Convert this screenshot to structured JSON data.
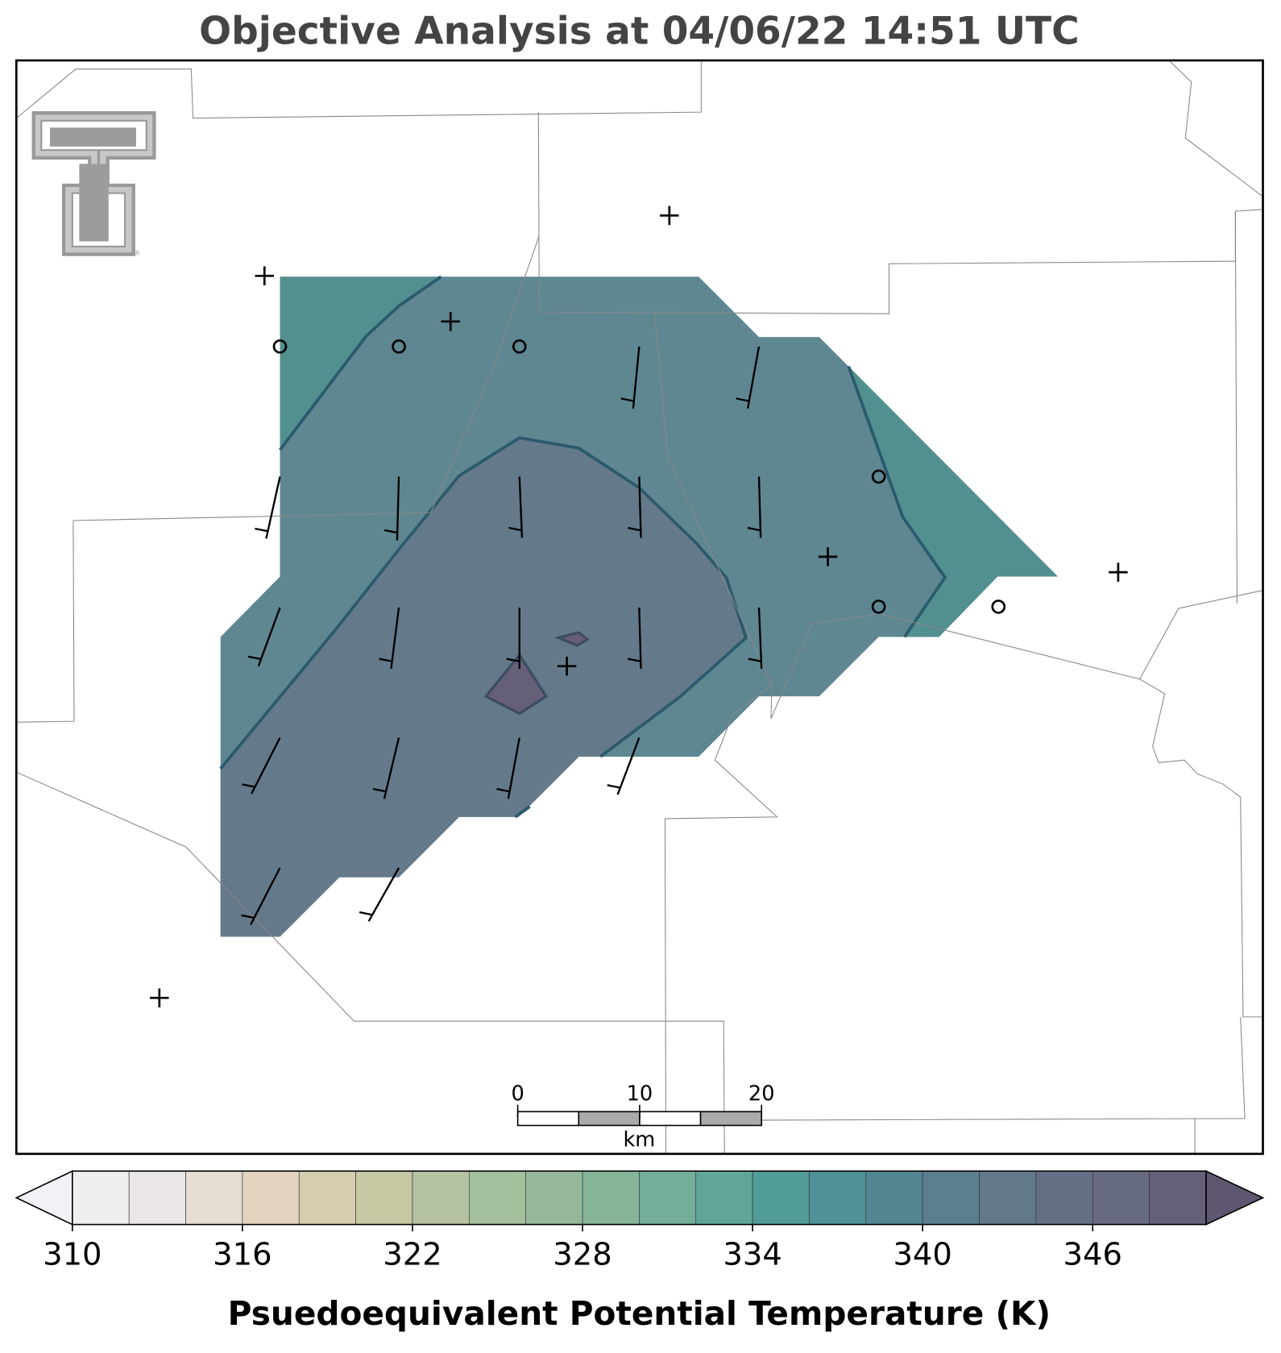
{
  "title": "Objective Analysis at 04/06/22 14:51 UTC",
  "colorbar": {
    "label": "Psuedoequivalent Potential Temperature (K)",
    "levels": [
      310,
      312,
      314,
      316,
      318,
      320,
      322,
      324,
      326,
      328,
      330,
      332,
      334,
      336,
      338,
      340,
      342,
      344,
      346,
      348,
      350
    ],
    "ticks": [
      310,
      316,
      322,
      328,
      334,
      340,
      346
    ],
    "colors": [
      "#efeef1",
      "#ebe6e6",
      "#e6ddd5",
      "#e2d4bf",
      "#d4cdb0",
      "#c6c8a4",
      "#b5c29f",
      "#a4bf9c",
      "#95b99a",
      "#85b498",
      "#73ae98",
      "#5fa698",
      "#529c97",
      "#4e9196",
      "#538593",
      "#5b7f8f",
      "#62798c",
      "#656f85",
      "#666b80",
      "#655f78"
    ],
    "under_color": "#f3f1f6",
    "over_color": "#5f5770"
  },
  "scale_bar": {
    "ticks": [
      0,
      10,
      20
    ],
    "unit": "km"
  }
}
